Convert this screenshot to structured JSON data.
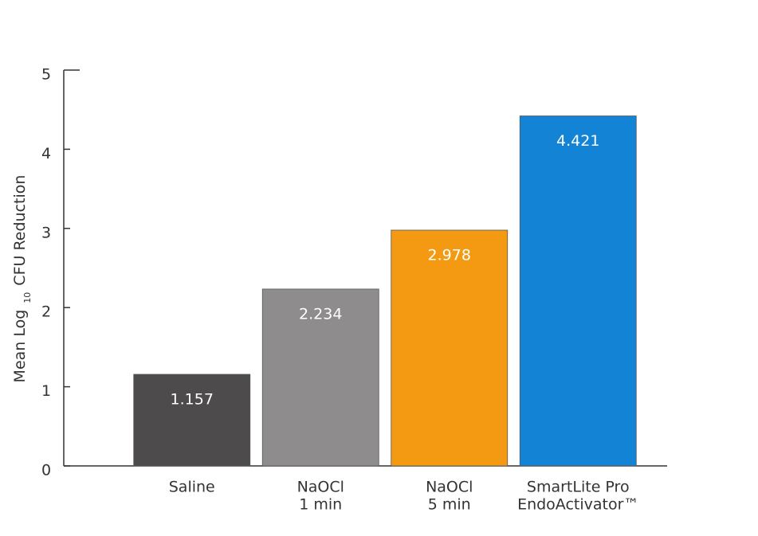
{
  "chart_data": {
    "type": "bar",
    "ylabel": [
      "Mean Log",
      "10",
      "CFU Reduction"
    ],
    "categories": [
      [
        "Saline"
      ],
      [
        "NaOCl",
        "1 min"
      ],
      [
        "NaOCl",
        "5 min"
      ],
      [
        "SmartLite Pro",
        "EndoActivator™"
      ]
    ],
    "values": [
      1.157,
      2.234,
      2.978,
      4.421
    ],
    "colors": [
      "#4d4b4b",
      "#8e8c8c",
      "#f39a12",
      "#1383d6"
    ],
    "ylim": [
      0,
      5
    ],
    "yticks": [
      0,
      1,
      2,
      3,
      4,
      5
    ]
  }
}
